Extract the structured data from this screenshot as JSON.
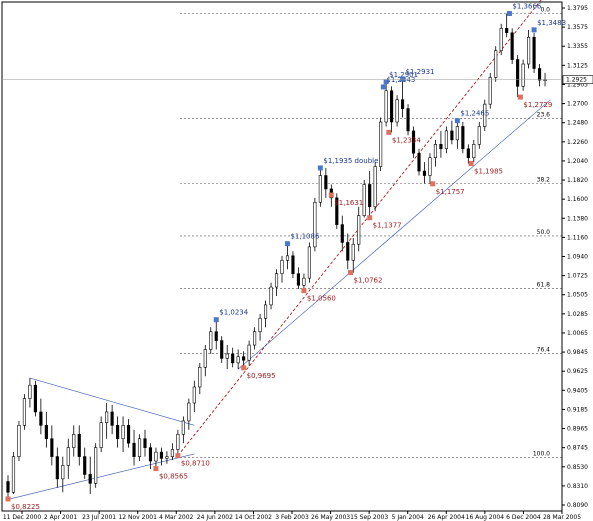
{
  "chart_data": {
    "type": "candlestick",
    "x_tick_labels": [
      "11 Dec 2000",
      "2 Apr 2001",
      "23 Jul 2001",
      "12 Nov 2001",
      "4 Mar 2002",
      "24 Jun 2002",
      "14 Oct 2002",
      "3 Feb 2003",
      "26 May 2003",
      "15 Sep 2003",
      "5 Jan 2004",
      "26 Apr 2004",
      "16 Aug 2004",
      "6 Dec 2004",
      "28 Mar 2005"
    ],
    "y_tick_labels": [
      "1.3795",
      "1.3575",
      "1.3355",
      "1.3125",
      "1.2905",
      "1.2700",
      "1.2480",
      "1.2260",
      "1.2040",
      "1.1820",
      "1.1600",
      "1.1380",
      "1.1160",
      "1.0940",
      "1.0725",
      "1.0505",
      "1.0285",
      "1.0065",
      "0.9845",
      "0.9625",
      "0.9405",
      "0.9185",
      "0.8965",
      "0.8745",
      "0.8530",
      "0.8310",
      "0.8090"
    ],
    "price_min": 0.809,
    "price_max": 1.3795,
    "current_price": "1.2925",
    "fibonacci_levels": [
      {
        "label": "0.0",
        "price": 1.3666
      },
      {
        "label": "23.6",
        "price": 1.2489
      },
      {
        "label": "38.2",
        "price": 1.1762
      },
      {
        "label": "50.0",
        "price": 1.1173
      },
      {
        "label": "61.8",
        "price": 1.0585
      },
      {
        "label": "76.4",
        "price": 0.9857
      },
      {
        "label": "100.0",
        "price": 0.869
      }
    ],
    "swing_labels": [
      {
        "text": "0,8225",
        "time": 0.0,
        "price": 0.8225,
        "kind": "low"
      },
      {
        "text": "0,8565",
        "time": 0.27,
        "price": 0.8565,
        "kind": "low"
      },
      {
        "text": "0,8710",
        "time": 0.31,
        "price": 0.871,
        "kind": "low"
      },
      {
        "text": "1,0234",
        "time": 0.38,
        "price": 1.0234,
        "kind": "high"
      },
      {
        "text": "0,9695",
        "time": 0.43,
        "price": 0.9695,
        "kind": "low"
      },
      {
        "text": "1,1086",
        "time": 0.51,
        "price": 1.1086,
        "kind": "high"
      },
      {
        "text": "1,0560",
        "time": 0.54,
        "price": 1.056,
        "kind": "low"
      },
      {
        "text": "1,1935 double",
        "time": 0.57,
        "price": 1.1935,
        "kind": "high"
      },
      {
        "text": "1,1631",
        "time": 0.59,
        "price": 1.1631,
        "kind": "low"
      },
      {
        "text": "1,0762",
        "time": 0.625,
        "price": 1.0762,
        "kind": "low"
      },
      {
        "text": "1,1377",
        "time": 0.66,
        "price": 1.1377,
        "kind": "low"
      },
      {
        "text": "1,2901",
        "time": 0.69,
        "price": 1.2901,
        "kind": "high"
      },
      {
        "text": "1,2843",
        "time": 0.685,
        "price": 1.2843,
        "kind": "high"
      },
      {
        "text": "1,2931",
        "time": 0.72,
        "price": 1.2931,
        "kind": "high"
      },
      {
        "text": "1,2334",
        "time": 0.695,
        "price": 1.2334,
        "kind": "low"
      },
      {
        "text": "1,1757",
        "time": 0.775,
        "price": 1.1757,
        "kind": "low"
      },
      {
        "text": "1,2465",
        "time": 0.82,
        "price": 1.2465,
        "kind": "high"
      },
      {
        "text": "1,1985",
        "time": 0.845,
        "price": 1.1985,
        "kind": "low"
      },
      {
        "text": "1,3666",
        "time": 0.915,
        "price": 1.3666,
        "kind": "high"
      },
      {
        "text": "1,3483",
        "time": 0.96,
        "price": 1.3483,
        "kind": "high"
      },
      {
        "text": "1,2729",
        "time": 0.935,
        "price": 1.2729,
        "kind": "low"
      }
    ],
    "series": [
      {
        "name": "",
        "type": "candlestick",
        "points": [
          {
            "t": 0.0,
            "o": 0.842,
            "h": 0.849,
            "l": 0.822,
            "c": 0.83
          },
          {
            "t": 0.01,
            "o": 0.83,
            "h": 0.875,
            "l": 0.828,
            "c": 0.87
          },
          {
            "t": 0.02,
            "o": 0.87,
            "h": 0.91,
            "l": 0.865,
            "c": 0.905
          },
          {
            "t": 0.03,
            "o": 0.905,
            "h": 0.94,
            "l": 0.9,
            "c": 0.935
          },
          {
            "t": 0.04,
            "o": 0.935,
            "h": 0.958,
            "l": 0.925,
            "c": 0.95
          },
          {
            "t": 0.05,
            "o": 0.95,
            "h": 0.955,
            "l": 0.915,
            "c": 0.92
          },
          {
            "t": 0.06,
            "o": 0.92,
            "h": 0.935,
            "l": 0.895,
            "c": 0.905
          },
          {
            "t": 0.07,
            "o": 0.905,
            "h": 0.92,
            "l": 0.88,
            "c": 0.89
          },
          {
            "t": 0.08,
            "o": 0.89,
            "h": 0.905,
            "l": 0.86,
            "c": 0.87
          },
          {
            "t": 0.09,
            "o": 0.87,
            "h": 0.88,
            "l": 0.835,
            "c": 0.845
          },
          {
            "t": 0.1,
            "o": 0.845,
            "h": 0.87,
            "l": 0.83,
            "c": 0.86
          },
          {
            "t": 0.11,
            "o": 0.86,
            "h": 0.89,
            "l": 0.845,
            "c": 0.88
          },
          {
            "t": 0.12,
            "o": 0.88,
            "h": 0.905,
            "l": 0.87,
            "c": 0.895
          },
          {
            "t": 0.13,
            "o": 0.895,
            "h": 0.905,
            "l": 0.86,
            "c": 0.87
          },
          {
            "t": 0.14,
            "o": 0.87,
            "h": 0.88,
            "l": 0.845,
            "c": 0.85
          },
          {
            "t": 0.15,
            "o": 0.85,
            "h": 0.87,
            "l": 0.828,
            "c": 0.84
          },
          {
            "t": 0.16,
            "o": 0.84,
            "h": 0.885,
            "l": 0.835,
            "c": 0.88
          },
          {
            "t": 0.17,
            "o": 0.88,
            "h": 0.915,
            "l": 0.875,
            "c": 0.908
          },
          {
            "t": 0.18,
            "o": 0.908,
            "h": 0.93,
            "l": 0.89,
            "c": 0.92
          },
          {
            "t": 0.19,
            "o": 0.92,
            "h": 0.928,
            "l": 0.895,
            "c": 0.905
          },
          {
            "t": 0.2,
            "o": 0.905,
            "h": 0.915,
            "l": 0.88,
            "c": 0.89
          },
          {
            "t": 0.21,
            "o": 0.89,
            "h": 0.915,
            "l": 0.875,
            "c": 0.905
          },
          {
            "t": 0.22,
            "o": 0.905,
            "h": 0.912,
            "l": 0.88,
            "c": 0.885
          },
          {
            "t": 0.23,
            "o": 0.885,
            "h": 0.9,
            "l": 0.86,
            "c": 0.87
          },
          {
            "t": 0.24,
            "o": 0.87,
            "h": 0.895,
            "l": 0.865,
            "c": 0.89
          },
          {
            "t": 0.25,
            "o": 0.89,
            "h": 0.9,
            "l": 0.87,
            "c": 0.88
          },
          {
            "t": 0.26,
            "o": 0.88,
            "h": 0.885,
            "l": 0.856,
            "c": 0.865
          },
          {
            "t": 0.27,
            "o": 0.865,
            "h": 0.88,
            "l": 0.857,
            "c": 0.875
          },
          {
            "t": 0.28,
            "o": 0.875,
            "h": 0.88,
            "l": 0.86,
            "c": 0.868
          },
          {
            "t": 0.29,
            "o": 0.868,
            "h": 0.876,
            "l": 0.862,
            "c": 0.87
          },
          {
            "t": 0.3,
            "o": 0.87,
            "h": 0.885,
            "l": 0.866,
            "c": 0.878
          },
          {
            "t": 0.31,
            "o": 0.878,
            "h": 0.9,
            "l": 0.871,
            "c": 0.895
          },
          {
            "t": 0.32,
            "o": 0.895,
            "h": 0.915,
            "l": 0.885,
            "c": 0.91
          },
          {
            "t": 0.33,
            "o": 0.91,
            "h": 0.935,
            "l": 0.9,
            "c": 0.93
          },
          {
            "t": 0.34,
            "o": 0.93,
            "h": 0.955,
            "l": 0.92,
            "c": 0.948
          },
          {
            "t": 0.35,
            "o": 0.948,
            "h": 0.975,
            "l": 0.94,
            "c": 0.97
          },
          {
            "t": 0.36,
            "o": 0.97,
            "h": 0.995,
            "l": 0.96,
            "c": 0.99
          },
          {
            "t": 0.37,
            "o": 0.99,
            "h": 1.015,
            "l": 0.985,
            "c": 1.01
          },
          {
            "t": 0.38,
            "o": 1.01,
            "h": 1.0234,
            "l": 0.99,
            "c": 1.0
          },
          {
            "t": 0.39,
            "o": 1.0,
            "h": 1.005,
            "l": 0.975,
            "c": 0.98
          },
          {
            "t": 0.4,
            "o": 0.98,
            "h": 0.995,
            "l": 0.968,
            "c": 0.985
          },
          {
            "t": 0.41,
            "o": 0.985,
            "h": 0.992,
            "l": 0.97,
            "c": 0.975
          },
          {
            "t": 0.42,
            "o": 0.975,
            "h": 0.99,
            "l": 0.968,
            "c": 0.982
          },
          {
            "t": 0.43,
            "o": 0.982,
            "h": 0.988,
            "l": 0.9695,
            "c": 0.978
          },
          {
            "t": 0.44,
            "o": 0.978,
            "h": 1.0,
            "l": 0.972,
            "c": 0.995
          },
          {
            "t": 0.45,
            "o": 0.995,
            "h": 1.015,
            "l": 0.99,
            "c": 1.01
          },
          {
            "t": 0.46,
            "o": 1.01,
            "h": 1.03,
            "l": 1.0,
            "c": 1.025
          },
          {
            "t": 0.47,
            "o": 1.025,
            "h": 1.045,
            "l": 1.015,
            "c": 1.04
          },
          {
            "t": 0.48,
            "o": 1.04,
            "h": 1.065,
            "l": 1.035,
            "c": 1.06
          },
          {
            "t": 0.49,
            "o": 1.06,
            "h": 1.08,
            "l": 1.05,
            "c": 1.075
          },
          {
            "t": 0.5,
            "o": 1.075,
            "h": 1.095,
            "l": 1.065,
            "c": 1.09
          },
          {
            "t": 0.51,
            "o": 1.09,
            "h": 1.1086,
            "l": 1.08,
            "c": 1.095
          },
          {
            "t": 0.52,
            "o": 1.095,
            "h": 1.1,
            "l": 1.07,
            "c": 1.075
          },
          {
            "t": 0.53,
            "o": 1.075,
            "h": 1.082,
            "l": 1.058,
            "c": 1.062
          },
          {
            "t": 0.54,
            "o": 1.062,
            "h": 1.075,
            "l": 1.056,
            "c": 1.07
          },
          {
            "t": 0.55,
            "o": 1.07,
            "h": 1.11,
            "l": 1.065,
            "c": 1.105
          },
          {
            "t": 0.56,
            "o": 1.105,
            "h": 1.16,
            "l": 1.1,
            "c": 1.155
          },
          {
            "t": 0.57,
            "o": 1.155,
            "h": 1.1935,
            "l": 1.15,
            "c": 1.185
          },
          {
            "t": 0.58,
            "o": 1.185,
            "h": 1.1935,
            "l": 1.16,
            "c": 1.17
          },
          {
            "t": 0.59,
            "o": 1.17,
            "h": 1.175,
            "l": 1.15,
            "c": 1.16
          },
          {
            "t": 0.6,
            "o": 1.16,
            "h": 1.165,
            "l": 1.125,
            "c": 1.13
          },
          {
            "t": 0.61,
            "o": 1.13,
            "h": 1.14,
            "l": 1.1,
            "c": 1.11
          },
          {
            "t": 0.62,
            "o": 1.11,
            "h": 1.12,
            "l": 1.08,
            "c": 1.09
          },
          {
            "t": 0.63,
            "o": 1.09,
            "h": 1.115,
            "l": 1.076,
            "c": 1.108
          },
          {
            "t": 0.64,
            "o": 1.108,
            "h": 1.15,
            "l": 1.1,
            "c": 1.14
          },
          {
            "t": 0.65,
            "o": 1.14,
            "h": 1.18,
            "l": 1.138,
            "c": 1.175
          },
          {
            "t": 0.66,
            "o": 1.175,
            "h": 1.19,
            "l": 1.138,
            "c": 1.15
          },
          {
            "t": 0.67,
            "o": 1.15,
            "h": 1.2,
            "l": 1.145,
            "c": 1.195
          },
          {
            "t": 0.68,
            "o": 1.195,
            "h": 1.25,
            "l": 1.19,
            "c": 1.245
          },
          {
            "t": 0.69,
            "o": 1.245,
            "h": 1.2901,
            "l": 1.24,
            "c": 1.28
          },
          {
            "t": 0.7,
            "o": 1.28,
            "h": 1.285,
            "l": 1.2334,
            "c": 1.245
          },
          {
            "t": 0.71,
            "o": 1.245,
            "h": 1.275,
            "l": 1.24,
            "c": 1.27
          },
          {
            "t": 0.72,
            "o": 1.27,
            "h": 1.2931,
            "l": 1.25,
            "c": 1.26
          },
          {
            "t": 0.73,
            "o": 1.26,
            "h": 1.265,
            "l": 1.23,
            "c": 1.235
          },
          {
            "t": 0.74,
            "o": 1.235,
            "h": 1.24,
            "l": 1.205,
            "c": 1.21
          },
          {
            "t": 0.75,
            "o": 1.21,
            "h": 1.215,
            "l": 1.185,
            "c": 1.19
          },
          {
            "t": 0.76,
            "o": 1.19,
            "h": 1.2,
            "l": 1.176,
            "c": 1.185
          },
          {
            "t": 0.77,
            "o": 1.185,
            "h": 1.21,
            "l": 1.1757,
            "c": 1.205
          },
          {
            "t": 0.78,
            "o": 1.205,
            "h": 1.225,
            "l": 1.195,
            "c": 1.22
          },
          {
            "t": 0.79,
            "o": 1.22,
            "h": 1.235,
            "l": 1.205,
            "c": 1.215
          },
          {
            "t": 0.8,
            "o": 1.215,
            "h": 1.24,
            "l": 1.21,
            "c": 1.235
          },
          {
            "t": 0.81,
            "o": 1.235,
            "h": 1.2465,
            "l": 1.22,
            "c": 1.225
          },
          {
            "t": 0.82,
            "o": 1.225,
            "h": 1.245,
            "l": 1.215,
            "c": 1.24
          },
          {
            "t": 0.83,
            "o": 1.24,
            "h": 1.245,
            "l": 1.21,
            "c": 1.215
          },
          {
            "t": 0.84,
            "o": 1.215,
            "h": 1.22,
            "l": 1.1985,
            "c": 1.205
          },
          {
            "t": 0.85,
            "o": 1.205,
            "h": 1.225,
            "l": 1.2,
            "c": 1.22
          },
          {
            "t": 0.86,
            "o": 1.22,
            "h": 1.245,
            "l": 1.215,
            "c": 1.24
          },
          {
            "t": 0.87,
            "o": 1.24,
            "h": 1.27,
            "l": 1.235,
            "c": 1.265
          },
          {
            "t": 0.88,
            "o": 1.265,
            "h": 1.3,
            "l": 1.26,
            "c": 1.295
          },
          {
            "t": 0.89,
            "o": 1.295,
            "h": 1.33,
            "l": 1.29,
            "c": 1.325
          },
          {
            "t": 0.9,
            "o": 1.325,
            "h": 1.355,
            "l": 1.32,
            "c": 1.35
          },
          {
            "t": 0.91,
            "o": 1.35,
            "h": 1.3666,
            "l": 1.34,
            "c": 1.345
          },
          {
            "t": 0.92,
            "o": 1.345,
            "h": 1.35,
            "l": 1.31,
            "c": 1.315
          },
          {
            "t": 0.93,
            "o": 1.315,
            "h": 1.32,
            "l": 1.2729,
            "c": 1.285
          },
          {
            "t": 0.94,
            "o": 1.285,
            "h": 1.315,
            "l": 1.28,
            "c": 1.31
          },
          {
            "t": 0.95,
            "o": 1.31,
            "h": 1.3483,
            "l": 1.305,
            "c": 1.34
          },
          {
            "t": 0.96,
            "o": 1.34,
            "h": 1.345,
            "l": 1.3,
            "c": 1.305
          },
          {
            "t": 0.97,
            "o": 1.305,
            "h": 1.31,
            "l": 1.285,
            "c": 1.292
          },
          {
            "t": 0.98,
            "o": 1.292,
            "h": 1.3,
            "l": 1.285,
            "c": 1.2925
          }
        ]
      }
    ],
    "grid": false,
    "legend": "none",
    "colors": {
      "background": "#ffffff",
      "candle": "#000000",
      "fib_line": "#555555",
      "trend_red": "#aa0000",
      "trend_blue": "#3355bb",
      "high_marker": "#4a78c8",
      "low_marker": "#e07060",
      "yellow_marker": "#e8c030",
      "price_box": "#ffffff"
    }
  }
}
